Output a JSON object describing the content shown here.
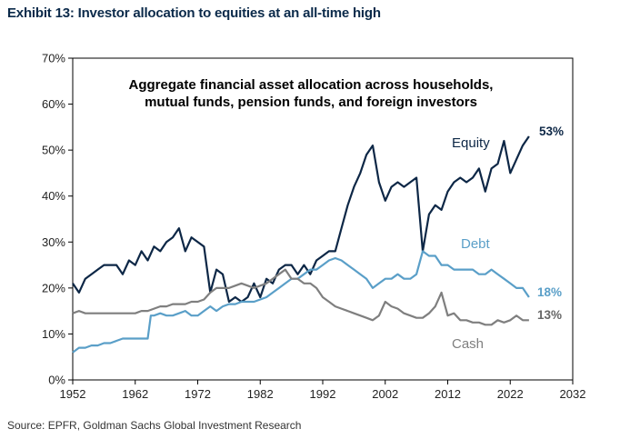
{
  "exhibit_title": "Exhibit 13: Investor allocation to equities at an all-time high",
  "source": "Source: EPFR, Goldman Sachs Global Investment Research",
  "chart_data": {
    "type": "line",
    "subtitle": [
      "Aggregate financial asset allocation across households,",
      "mutual funds, pension funds, and foreign investors"
    ],
    "xlabel": "",
    "ylabel": "",
    "xlim": [
      1952,
      2032
    ],
    "ylim": [
      0,
      70
    ],
    "x_ticks": [
      "1952",
      "1962",
      "1972",
      "1982",
      "1992",
      "2002",
      "2012",
      "2022",
      "2032"
    ],
    "y_ticks": [
      "0%",
      "10%",
      "20%",
      "30%",
      "40%",
      "50%",
      "60%",
      "70%"
    ],
    "grid": false,
    "colors": {
      "equity": "#0d2746",
      "debt": "#5a9fc8",
      "cash": "#7f7f7f"
    },
    "series": [
      {
        "name": "Equity",
        "end_label": "53%",
        "x": [
          1952,
          1953,
          1954,
          1955,
          1956,
          1957,
          1958,
          1959,
          1960,
          1961,
          1962,
          1963,
          1964,
          1965,
          1966,
          1967,
          1968,
          1969,
          1970,
          1971,
          1972,
          1973,
          1974,
          1975,
          1976,
          1977,
          1978,
          1979,
          1980,
          1981,
          1982,
          1983,
          1984,
          1985,
          1986,
          1987,
          1988,
          1989,
          1990,
          1991,
          1992,
          1993,
          1994,
          1995,
          1996,
          1997,
          1998,
          1999,
          2000,
          2001,
          2002,
          2003,
          2004,
          2005,
          2006,
          2007,
          2008,
          2009,
          2010,
          2011,
          2012,
          2013,
          2014,
          2015,
          2016,
          2017,
          2018,
          2019,
          2020,
          2021,
          2022,
          2023,
          2024,
          2025
        ],
        "values": [
          21,
          19,
          22,
          23,
          24,
          25,
          25,
          25,
          23,
          26,
          25,
          28,
          26,
          29,
          28,
          30,
          31,
          33,
          28,
          31,
          30,
          29,
          19,
          24,
          23,
          17,
          18,
          17,
          18,
          21,
          18,
          22,
          21,
          24,
          25,
          25,
          23,
          25,
          23,
          26,
          27,
          28,
          28,
          33,
          38,
          42,
          45,
          49,
          51,
          43,
          39,
          42,
          43,
          42,
          43,
          44,
          28,
          36,
          38,
          37,
          41,
          43,
          44,
          43,
          44,
          46,
          41,
          46,
          47,
          52,
          45,
          48,
          51,
          53
        ]
      },
      {
        "name": "Debt",
        "end_label": "18%",
        "x": [
          1952,
          1953,
          1954,
          1955,
          1956,
          1957,
          1958,
          1959,
          1960,
          1961,
          1962,
          1963,
          1964,
          1964.5,
          1965,
          1966,
          1967,
          1968,
          1969,
          1970,
          1971,
          1972,
          1973,
          1974,
          1975,
          1976,
          1977,
          1978,
          1979,
          1980,
          1981,
          1982,
          1983,
          1984,
          1985,
          1986,
          1987,
          1988,
          1989,
          1990,
          1991,
          1992,
          1993,
          1994,
          1995,
          1996,
          1997,
          1998,
          1999,
          2000,
          2001,
          2002,
          2003,
          2004,
          2005,
          2006,
          2007,
          2008,
          2009,
          2010,
          2011,
          2012,
          2013,
          2014,
          2015,
          2016,
          2017,
          2018,
          2019,
          2020,
          2021,
          2022,
          2023,
          2024,
          2025
        ],
        "values": [
          6,
          7,
          7,
          7.5,
          7.5,
          8,
          8,
          8.5,
          9,
          9,
          9,
          9,
          9,
          14,
          14,
          14.5,
          14,
          14,
          14.5,
          15,
          14,
          14,
          15,
          16,
          15,
          16,
          16.5,
          16.5,
          17,
          17,
          17,
          17.5,
          18,
          19,
          20,
          21,
          22,
          22,
          23,
          24,
          24,
          25,
          26,
          26.5,
          26,
          25,
          24,
          23,
          22,
          20,
          21,
          22,
          22,
          23,
          22,
          22,
          23,
          28,
          27,
          27,
          25,
          25,
          24,
          24,
          24,
          24,
          23,
          23,
          24,
          23,
          22,
          21,
          20,
          20,
          18
        ]
      },
      {
        "name": "Cash",
        "end_label": "13%",
        "x": [
          1952,
          1953,
          1954,
          1955,
          1956,
          1957,
          1958,
          1959,
          1960,
          1961,
          1962,
          1963,
          1964,
          1965,
          1966,
          1967,
          1968,
          1969,
          1970,
          1971,
          1972,
          1973,
          1974,
          1975,
          1976,
          1977,
          1978,
          1979,
          1980,
          1981,
          1982,
          1983,
          1984,
          1985,
          1986,
          1987,
          1988,
          1989,
          1990,
          1991,
          1992,
          1993,
          1994,
          1995,
          1996,
          1997,
          1998,
          1999,
          2000,
          2001,
          2002,
          2003,
          2004,
          2005,
          2006,
          2007,
          2008,
          2009,
          2010,
          2011,
          2012,
          2013,
          2014,
          2015,
          2016,
          2017,
          2018,
          2019,
          2020,
          2021,
          2022,
          2023,
          2024,
          2025
        ],
        "values": [
          14.5,
          15,
          14.5,
          14.5,
          14.5,
          14.5,
          14.5,
          14.5,
          14.5,
          14.5,
          14.5,
          15,
          15,
          15.5,
          16,
          16,
          16.5,
          16.5,
          16.5,
          17,
          17,
          17.5,
          19,
          20,
          20,
          20,
          20.5,
          21,
          20.5,
          20,
          20.5,
          21,
          22,
          23,
          24,
          22,
          22,
          21,
          21,
          20,
          18,
          17,
          16,
          15.5,
          15,
          14.5,
          14,
          13.5,
          13,
          14,
          17,
          16,
          15.5,
          14.5,
          14,
          13.5,
          13.5,
          14.5,
          16,
          19,
          14,
          14.5,
          13,
          13,
          12.5,
          12.5,
          12,
          12,
          13,
          12.5,
          13,
          14,
          13,
          13
        ]
      }
    ]
  }
}
